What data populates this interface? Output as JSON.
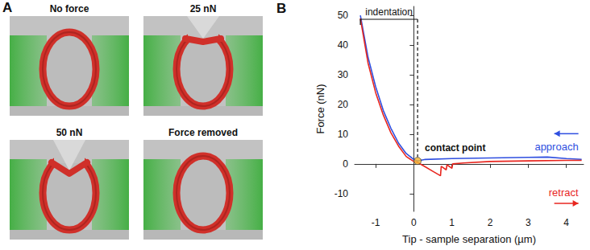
{
  "panels": {
    "A": {
      "label": "A",
      "images": [
        {
          "title": "No force"
        },
        {
          "title": "25 nN"
        },
        {
          "title": "50 nN"
        },
        {
          "title": "Force removed"
        }
      ]
    },
    "B": {
      "label": "B"
    }
  },
  "chart_data": {
    "type": "line",
    "x_label": "Tip - sample separation (µm)",
    "y_label": "Force (nN)",
    "xlim": [
      -1.55,
      4.45
    ],
    "ylim": [
      -16,
      53
    ],
    "xticks": [
      -1,
      0,
      1,
      2,
      3,
      4
    ],
    "yticks": [
      -10,
      0,
      10,
      20,
      30,
      40,
      50
    ],
    "grid": false,
    "series": [
      {
        "name": "approach",
        "color": "#2f4fe0",
        "x": [
          -1.4,
          -1.2,
          -1.0,
          -0.8,
          -0.6,
          -0.4,
          -0.2,
          0.0,
          0.1,
          0.3,
          1.0,
          2.0,
          3.0,
          3.5,
          4.0,
          4.4
        ],
        "values": [
          50,
          36,
          26,
          18,
          12,
          7,
          3.5,
          1.5,
          1,
          1.5,
          1.8,
          2,
          2.2,
          2.3,
          1.8,
          1.5
        ]
      },
      {
        "name": "retract",
        "color": "#e8261f",
        "x": [
          -1.4,
          -1.2,
          -1.0,
          -0.8,
          -0.6,
          -0.4,
          -0.2,
          0.0,
          0.1,
          0.3,
          0.5,
          0.7,
          0.72,
          0.85,
          0.87,
          1.0,
          1.02,
          1.3,
          2.0,
          3.0,
          4.0,
          4.4
        ],
        "values": [
          49,
          34,
          24,
          16.5,
          10.5,
          6,
          2.5,
          0.8,
          0.5,
          -1,
          -2.5,
          -4,
          -0.8,
          -2,
          -0.3,
          -1.5,
          0,
          0.3,
          0.8,
          1,
          1.2,
          1.2
        ]
      }
    ],
    "annotations": [
      {
        "text": "indentation",
        "x_range": [
          -1.4,
          0.1
        ]
      },
      {
        "text": "contact point",
        "x": 0.1,
        "y": 1
      }
    ]
  }
}
